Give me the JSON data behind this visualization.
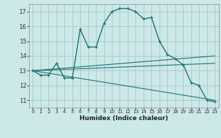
{
  "xlabel": "Humidex (Indice chaleur)",
  "bg_color": "#cce8e8",
  "grid_color": "#aacccc",
  "line_color": "#1a7070",
  "xlim": [
    -0.5,
    23.5
  ],
  "ylim": [
    10.5,
    17.5
  ],
  "xticks": [
    0,
    1,
    2,
    3,
    4,
    5,
    6,
    7,
    8,
    9,
    10,
    11,
    12,
    13,
    14,
    15,
    16,
    17,
    18,
    19,
    20,
    21,
    22,
    23
  ],
  "yticks": [
    11,
    12,
    13,
    14,
    15,
    16,
    17
  ],
  "curve1_x": [
    0,
    1,
    2,
    3,
    4,
    5,
    6,
    7,
    8,
    9,
    10,
    11,
    12,
    13,
    14,
    15,
    16,
    17,
    18,
    19,
    20,
    21,
    22,
    23
  ],
  "curve1_y": [
    13.0,
    12.7,
    12.7,
    13.5,
    12.5,
    12.5,
    15.8,
    14.6,
    14.6,
    16.2,
    17.0,
    17.2,
    17.2,
    17.0,
    16.5,
    16.6,
    15.0,
    14.1,
    13.8,
    13.4,
    12.2,
    12.0,
    11.0,
    10.9
  ],
  "curve2_x": [
    0,
    23
  ],
  "curve2_y": [
    13.0,
    14.0
  ],
  "curve3_x": [
    0,
    23
  ],
  "curve3_y": [
    13.0,
    13.5
  ],
  "curve4_x": [
    0,
    23
  ],
  "curve4_y": [
    13.0,
    11.0
  ]
}
